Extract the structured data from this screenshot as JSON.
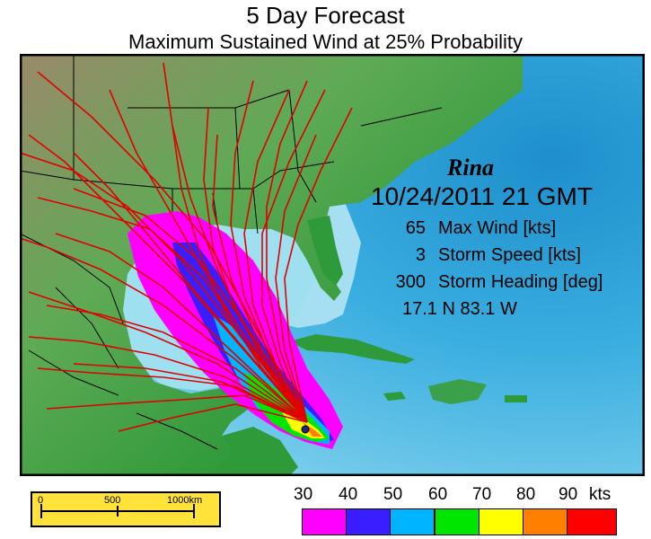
{
  "header": {
    "title": "5 Day Forecast",
    "subtitle": "Maximum Sustained Wind at 25% Probability"
  },
  "storm": {
    "name": "Rina",
    "datetime": "10/24/2011  21 GMT",
    "stats": [
      {
        "value": "65",
        "label": "Max Wind [kts]"
      },
      {
        "value": "3",
        "label": "Storm Speed [kts]"
      },
      {
        "value": "300",
        "label": "Storm Heading [deg]"
      }
    ],
    "position": "17.1 N  83.1 W"
  },
  "scale_bar": {
    "labels": [
      "0",
      "500",
      "1000km"
    ]
  },
  "legend": {
    "values": [
      "30",
      "40",
      "50",
      "60",
      "70",
      "80",
      "90",
      "kts"
    ],
    "colors": [
      "#ff00ff",
      "#3a1eff",
      "#00b4ff",
      "#00e600",
      "#ffff00",
      "#ff8000",
      "#ff0000"
    ]
  },
  "map_colors": {
    "ocean_deep": "#2a9fd6",
    "ocean_shallow": "#b8e8f4",
    "land_low": "#2e9a3a",
    "land_high": "#8a7a5a",
    "track_color": "#e00000"
  }
}
